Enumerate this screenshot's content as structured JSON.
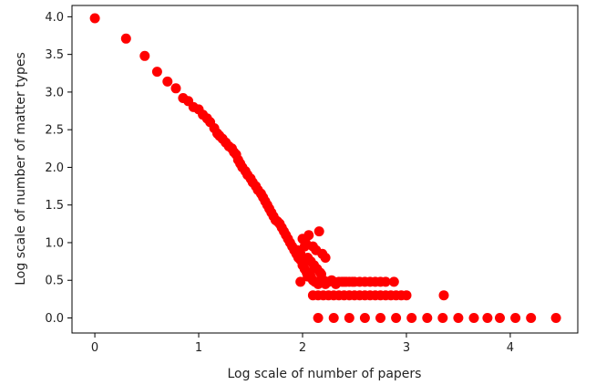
{
  "chart_data": {
    "type": "scatter",
    "title": "",
    "xlabel": "Log scale of number of papers",
    "ylabel": "Log scale of number of matter types",
    "xlim": [
      -0.22,
      4.65
    ],
    "ylim": [
      -0.2,
      4.15
    ],
    "x_ticks": [
      0,
      1,
      2,
      3,
      4
    ],
    "x_tick_labels": [
      "0",
      "1",
      "2",
      "3",
      "4"
    ],
    "y_ticks": [
      0.0,
      0.5,
      1.0,
      1.5,
      2.0,
      2.5,
      3.0,
      3.5,
      4.0
    ],
    "y_tick_labels": [
      "0.0",
      "0.5",
      "1.0",
      "1.5",
      "2.0",
      "2.5",
      "3.0",
      "3.5",
      "4.0"
    ],
    "grid": false,
    "legend": "none",
    "marker_color": "#ff0000",
    "series": [
      {
        "x": [
          0.0,
          0.3,
          0.48,
          0.6,
          0.7,
          0.78,
          0.85,
          0.9,
          0.95,
          1.0,
          1.04,
          1.08,
          1.11,
          1.15,
          1.18,
          1.2,
          1.23,
          1.26,
          1.29,
          1.32,
          1.34,
          1.36,
          1.38,
          1.4,
          1.42,
          1.45,
          1.47,
          1.5,
          1.52,
          1.55,
          1.57,
          1.6,
          1.62,
          1.64,
          1.66,
          1.68,
          1.7,
          1.72,
          1.74,
          1.76,
          1.78,
          1.8,
          1.82,
          1.84,
          1.86,
          1.88,
          1.9,
          1.92,
          1.94,
          1.96,
          1.98,
          2.0,
          2.02,
          2.04,
          2.06,
          2.08,
          2.1,
          2.12,
          2.15,
          2.18,
          2.2,
          2.22,
          2.25,
          2.28,
          2.3,
          2.32,
          2.35,
          2.38,
          2.4,
          2.42,
          2.45,
          2.48,
          2.5,
          2.55,
          2.6,
          2.65,
          2.7,
          2.75,
          2.8,
          2.88,
          2.0,
          2.03,
          2.06,
          2.1,
          2.13,
          2.16,
          2.19,
          2.22,
          1.95,
          1.98,
          2.02,
          2.05,
          2.08,
          2.11,
          2.14,
          2.17,
          1.98,
          2.05,
          2.12,
          2.18,
          2.24,
          2.1,
          2.15,
          2.2,
          2.25,
          2.3,
          2.35,
          2.4,
          2.45,
          2.5,
          2.55,
          2.6,
          2.65,
          2.7,
          2.75,
          2.8,
          2.85,
          2.9,
          2.95,
          3.0,
          3.36,
          2.15,
          2.3,
          2.45,
          2.6,
          2.75,
          2.9,
          3.05,
          3.2,
          3.35,
          3.5,
          3.65,
          3.78,
          3.9,
          4.05,
          4.2,
          4.44
        ],
        "y": [
          3.98,
          3.71,
          3.48,
          3.27,
          3.14,
          3.05,
          2.92,
          2.88,
          2.8,
          2.77,
          2.7,
          2.65,
          2.6,
          2.52,
          2.45,
          2.42,
          2.38,
          2.33,
          2.28,
          2.25,
          2.2,
          2.17,
          2.1,
          2.05,
          2.0,
          1.95,
          1.9,
          1.85,
          1.8,
          1.75,
          1.7,
          1.65,
          1.6,
          1.55,
          1.5,
          1.45,
          1.4,
          1.35,
          1.3,
          1.28,
          1.25,
          1.2,
          1.15,
          1.1,
          1.05,
          1.0,
          0.95,
          0.9,
          0.85,
          0.8,
          0.77,
          0.7,
          0.65,
          0.6,
          0.6,
          0.55,
          0.5,
          0.48,
          0.45,
          0.48,
          0.5,
          0.45,
          0.48,
          0.5,
          0.48,
          0.45,
          0.48,
          0.48,
          0.48,
          0.48,
          0.48,
          0.48,
          0.48,
          0.48,
          0.48,
          0.48,
          0.48,
          0.48,
          0.48,
          0.48,
          1.05,
          1.0,
          1.1,
          0.95,
          0.9,
          1.15,
          0.85,
          0.8,
          0.9,
          0.85,
          0.95,
          0.8,
          0.75,
          0.7,
          0.65,
          0.6,
          0.48,
          0.55,
          0.48,
          0.58,
          0.48,
          0.3,
          0.3,
          0.3,
          0.3,
          0.3,
          0.3,
          0.3,
          0.3,
          0.3,
          0.3,
          0.3,
          0.3,
          0.3,
          0.3,
          0.3,
          0.3,
          0.3,
          0.3,
          0.3,
          0.3,
          0.0,
          0.0,
          0.0,
          0.0,
          0.0,
          0.0,
          0.0,
          0.0,
          0.0,
          0.0,
          0.0,
          0.0,
          0.0,
          0.0,
          0.0,
          0.0
        ]
      }
    ]
  }
}
